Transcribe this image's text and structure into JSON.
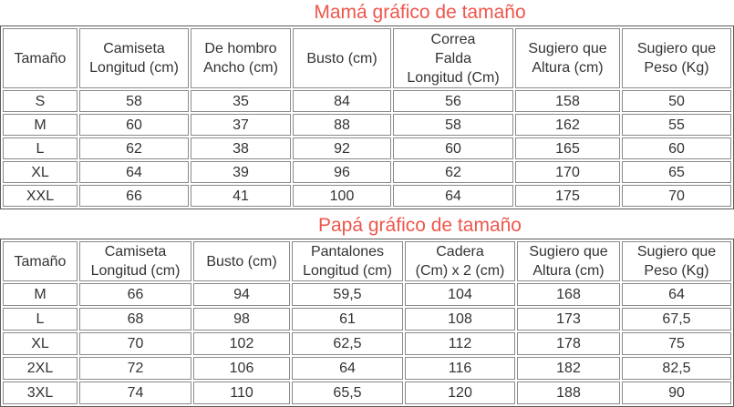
{
  "theme": {
    "title_color": "#ef564c",
    "border_outer_color": "#5b5b5b",
    "border_inner_color": "#8a8a8a",
    "text_color": "#333333",
    "background_color": "#ffffff"
  },
  "mom_chart": {
    "title": "Mamá gráfico de tamaño",
    "columns": [
      "Tamaño",
      "Camiseta\nLongitud (cm)",
      "De hombro\nAncho (cm)",
      "Busto (cm)",
      "Correa\nFalda\nLongitud (Cm)",
      "Sugiero que\nAltura (cm)",
      "Sugiero que\nPeso (Kg)"
    ],
    "rows": [
      [
        "S",
        "58",
        "35",
        "84",
        "56",
        "158",
        "50"
      ],
      [
        "M",
        "60",
        "37",
        "88",
        "58",
        "162",
        "55"
      ],
      [
        "L",
        "62",
        "38",
        "92",
        "60",
        "165",
        "60"
      ],
      [
        "XL",
        "64",
        "39",
        "96",
        "62",
        "170",
        "65"
      ],
      [
        "XXL",
        "66",
        "41",
        "100",
        "64",
        "175",
        "70"
      ]
    ]
  },
  "dad_chart": {
    "title": "Papá gráfico de tamaño",
    "columns": [
      "Tamaño",
      "Camiseta\nLongitud (cm)",
      "Busto (cm)",
      "Pantalones\nLongitud (cm)",
      "Cadera\n(Cm) x 2 (cm)",
      "Sugiero que\nAltura (cm)",
      "Sugiero que\nPeso (Kg)"
    ],
    "rows": [
      [
        "M",
        "66",
        "94",
        "59,5",
        "104",
        "168",
        "64"
      ],
      [
        "L",
        "68",
        "98",
        "61",
        "108",
        "173",
        "67,5"
      ],
      [
        "XL",
        "70",
        "102",
        "62,5",
        "112",
        "178",
        "75"
      ],
      [
        "2XL",
        "72",
        "106",
        "64",
        "116",
        "182",
        "82,5"
      ],
      [
        "3XL",
        "74",
        "110",
        "65,5",
        "120",
        "188",
        "90"
      ]
    ]
  }
}
